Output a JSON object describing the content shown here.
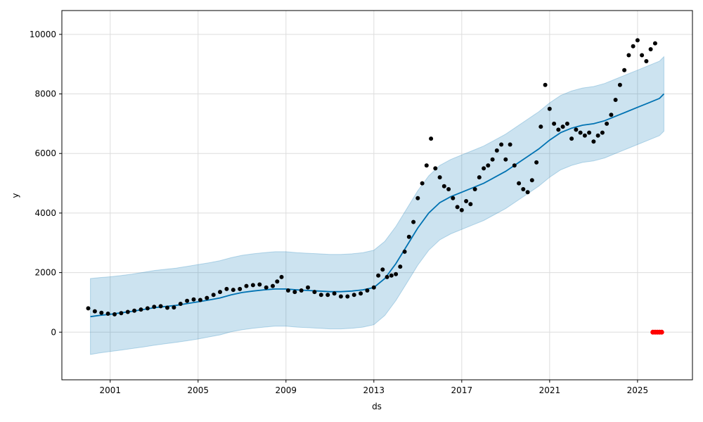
{
  "chart_data": {
    "type": "line",
    "title": "",
    "xlabel": "ds",
    "ylabel": "y",
    "xlim": [
      1998.8,
      2027.5
    ],
    "ylim": [
      -1600,
      10800
    ],
    "grid": true,
    "xticks": [
      2001,
      2005,
      2009,
      2013,
      2017,
      2021,
      2025
    ],
    "xtick_labels": [
      "2001",
      "2005",
      "2009",
      "2013",
      "2017",
      "2021",
      "2025"
    ],
    "yticks": [
      0,
      2000,
      4000,
      6000,
      8000,
      10000
    ],
    "ytick_labels": [
      "0",
      "2000",
      "4000",
      "6000",
      "8000",
      "10000"
    ],
    "colors": {
      "forecast_line": "#0072B2",
      "interval_fill": "#0072B2",
      "observed_points": "#000000",
      "test_points": "#ff0000",
      "grid": "#dddddd"
    },
    "series": [
      {
        "type": "forecast",
        "x": [
          2000.1,
          2000.5,
          2001.0,
          2001.5,
          2002.0,
          2002.5,
          2003.0,
          2003.5,
          2004.0,
          2004.5,
          2005.0,
          2005.5,
          2006.0,
          2006.5,
          2007.0,
          2007.5,
          2008.0,
          2008.5,
          2009.0,
          2009.5,
          2010.0,
          2010.5,
          2011.0,
          2011.5,
          2012.0,
          2012.5,
          2013.0,
          2013.5,
          2014.0,
          2014.5,
          2015.0,
          2015.5,
          2016.0,
          2016.5,
          2017.0,
          2017.5,
          2018.0,
          2018.5,
          2019.0,
          2019.5,
          2020.0,
          2020.5,
          2021.0,
          2021.5,
          2022.0,
          2022.5,
          2023.0,
          2023.5,
          2024.0,
          2024.5,
          2025.0,
          2025.5,
          2026.0,
          2026.2
        ],
        "y": [
          520,
          560,
          600,
          650,
          700,
          760,
          820,
          860,
          900,
          960,
          1020,
          1080,
          1150,
          1250,
          1330,
          1380,
          1420,
          1450,
          1450,
          1420,
          1400,
          1380,
          1360,
          1360,
          1380,
          1420,
          1500,
          1800,
          2300,
          2900,
          3500,
          4000,
          4350,
          4550,
          4700,
          4850,
          5000,
          5200,
          5400,
          5650,
          5900,
          6150,
          6450,
          6700,
          6850,
          6950,
          7000,
          7100,
          7250,
          7400,
          7550,
          7700,
          7850,
          8000
        ],
        "lower": [
          -750,
          -700,
          -650,
          -600,
          -550,
          -500,
          -440,
          -390,
          -340,
          -290,
          -230,
          -160,
          -90,
          10,
          80,
          130,
          170,
          200,
          200,
          170,
          150,
          130,
          110,
          110,
          130,
          170,
          250,
          560,
          1060,
          1650,
          2250,
          2750,
          3100,
          3300,
          3450,
          3600,
          3750,
          3950,
          4150,
          4400,
          4650,
          4900,
          5200,
          5450,
          5600,
          5700,
          5750,
          5850,
          6000,
          6150,
          6300,
          6450,
          6600,
          6750
        ],
        "upper": [
          1800,
          1830,
          1860,
          1900,
          1950,
          2010,
          2070,
          2110,
          2150,
          2210,
          2270,
          2330,
          2400,
          2500,
          2580,
          2630,
          2670,
          2700,
          2700,
          2670,
          2650,
          2630,
          2610,
          2610,
          2630,
          2670,
          2750,
          3050,
          3550,
          4150,
          4750,
          5250,
          5600,
          5800,
          5950,
          6100,
          6250,
          6450,
          6650,
          6900,
          7150,
          7400,
          7700,
          7950,
          8100,
          8200,
          8250,
          8350,
          8500,
          8650,
          8800,
          8950,
          9100,
          9250
        ]
      },
      {
        "type": "observed",
        "x": [
          2000.0,
          2000.3,
          2000.6,
          2000.9,
          2001.2,
          2001.5,
          2001.8,
          2002.1,
          2002.4,
          2002.7,
          2003.0,
          2003.3,
          2003.6,
          2003.9,
          2004.2,
          2004.5,
          2004.8,
          2005.1,
          2005.4,
          2005.7,
          2006.0,
          2006.3,
          2006.6,
          2006.9,
          2007.2,
          2007.5,
          2007.8,
          2008.1,
          2008.4,
          2008.6,
          2008.8,
          2009.1,
          2009.4,
          2009.7,
          2010.0,
          2010.3,
          2010.6,
          2010.9,
          2011.2,
          2011.5,
          2011.8,
          2012.1,
          2012.4,
          2012.7,
          2013.0,
          2013.2,
          2013.4,
          2013.6,
          2013.8,
          2014.0,
          2014.2,
          2014.4,
          2014.6,
          2014.8,
          2015.0,
          2015.2,
          2015.4,
          2015.6,
          2015.8,
          2016.0,
          2016.2,
          2016.4,
          2016.6,
          2016.8,
          2017.0,
          2017.2,
          2017.4,
          2017.6,
          2017.8,
          2018.0,
          2018.2,
          2018.4,
          2018.6,
          2018.8,
          2019.0,
          2019.2,
          2019.4,
          2019.6,
          2019.8,
          2020.0,
          2020.2,
          2020.4,
          2020.6,
          2020.8,
          2021.0,
          2021.2,
          2021.4,
          2021.6,
          2021.8,
          2022.0,
          2022.2,
          2022.4,
          2022.6,
          2022.8,
          2023.0,
          2023.2,
          2023.4,
          2023.6,
          2023.8,
          2024.0,
          2024.2,
          2024.4,
          2024.6,
          2024.8,
          2025.0,
          2025.2,
          2025.4,
          2025.6,
          2025.8
        ],
        "y": [
          800,
          700,
          650,
          620,
          600,
          640,
          680,
          720,
          760,
          800,
          850,
          870,
          820,
          830,
          950,
          1050,
          1100,
          1080,
          1150,
          1250,
          1350,
          1450,
          1420,
          1450,
          1550,
          1580,
          1600,
          1500,
          1550,
          1700,
          1850,
          1400,
          1350,
          1400,
          1500,
          1350,
          1250,
          1250,
          1300,
          1200,
          1200,
          1250,
          1300,
          1400,
          1500,
          1900,
          2100,
          1850,
          1900,
          1950,
          2200,
          2700,
          3200,
          3700,
          4500,
          5000,
          5600,
          6500,
          5500,
          5200,
          4900,
          4800,
          4500,
          4200,
          4100,
          4400,
          4300,
          4800,
          5200,
          5500,
          5600,
          5800,
          6100,
          6300,
          5800,
          6300,
          5600,
          5000,
          4800,
          4700,
          5100,
          5700,
          6900,
          8300,
          7500,
          7000,
          6800,
          6900,
          7000,
          6500,
          6800,
          6700,
          6600,
          6700,
          6400,
          6600,
          6700,
          7000,
          7300,
          7800,
          8300,
          8800,
          9300,
          9600,
          9800,
          9300,
          9100,
          9500,
          9700
        ]
      },
      {
        "type": "test",
        "x": [
          2025.7,
          2025.8,
          2025.9,
          2026.0,
          2026.1
        ],
        "y": [
          0,
          0,
          0,
          0,
          0
        ]
      }
    ]
  }
}
